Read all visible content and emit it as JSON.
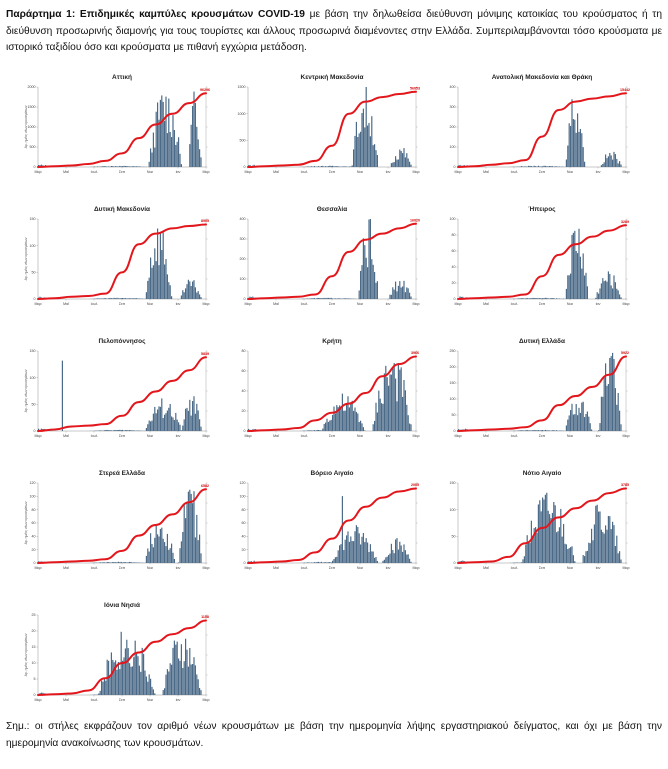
{
  "header": {
    "lead": "Παράρτημα 1: Επιδημικές καμπύλες κρουσμάτων COVID-19",
    "text": " με βάση την δηλωθείσα διεύθυνση μόνιμης κατοικίας του κρούσματος ή τη διεύθυνση προσωρινής διαμονής για τους τουρίστες και άλλους προσωρινά διαμένοντες στην Ελλάδα. Συμπεριλαμβάνονται τόσο κρούσματα με ιστορικό ταξιδίου όσο και κρούσματα με πιθανή εγχώρια μετάδοση."
  },
  "note": "Σημ.: οι στήλες εκφράζουν τον αριθμό νέων κρουσμάτων με βάση την ημερομηνία λήψης εργαστηριακού δείγματος, και όχι με βάση την ημερομηνία ανακοίνωσης των κρουσμάτων.",
  "colors": {
    "bars": "#4a6a88",
    "cumulative": "#e3161b",
    "axis": "#777777"
  },
  "chart_data": [
    {
      "type": "bar",
      "title": "Αττική",
      "months": [
        "Μαρ",
        "Μαϊ",
        "Ιουλ",
        "Σεπ",
        "Νοε",
        "Ιαν",
        "Μαρ"
      ],
      "ylabel": "Αρ. ημ/ος νέων κρουσμάτων",
      "ylim": [
        0,
        2000
      ],
      "yticks": [
        0,
        500,
        1000,
        1500,
        2000
      ],
      "cumulative_label": "96296",
      "cum_ylim": [
        0,
        100000
      ],
      "profile": {
        "wave1": [
          0.0,
          0.02
        ],
        "wave2": [
          0.66,
          0.86
        ],
        "wave3": [
          0.9,
          0.98
        ],
        "w2": 1.0,
        "w3": 0.95
      },
      "cumulative": [
        0.0,
        0.01,
        0.02,
        0.04,
        0.08,
        0.18,
        0.38,
        0.56,
        0.7,
        0.84,
        0.97
      ]
    },
    {
      "type": "bar",
      "title": "Κεντρική Μακεδονία",
      "months": [
        "Μαρ",
        "Μαϊ",
        "Ιουλ",
        "Σεπ",
        "Νοε",
        "Ιαν",
        "Μαρ"
      ],
      "ylabel": "",
      "ylim": [
        0,
        1500
      ],
      "yticks": [
        0,
        500,
        1000,
        1500
      ],
      "cumulative_label": "56053",
      "cum_ylim": [
        0,
        60000
      ],
      "profile": {
        "wave1": [
          0.0,
          0.02
        ],
        "wave2": [
          0.62,
          0.78
        ],
        "wave3": [
          0.85,
          0.98
        ],
        "w2": 1.0,
        "w3": 0.25
      },
      "cumulative": [
        0.0,
        0.01,
        0.02,
        0.03,
        0.08,
        0.28,
        0.7,
        0.86,
        0.92,
        0.96,
        0.99
      ]
    },
    {
      "type": "bar",
      "title": "Ανατολική Μακεδονία και Θράκη",
      "months": [
        "Μαρ",
        "Μαϊ",
        "Ιουλ",
        "Σεπ",
        "Νοε",
        "Ιαν",
        "Μαρ"
      ],
      "ylabel": "",
      "ylim": [
        0,
        400
      ],
      "yticks": [
        0,
        100,
        200,
        300,
        400
      ],
      "cumulative_label": "15442",
      "cum_ylim": [
        0,
        16000
      ],
      "profile": {
        "wave1": [
          0.0,
          0.02
        ],
        "wave2": [
          0.64,
          0.76
        ],
        "wave3": [
          0.85,
          0.98
        ],
        "w2": 1.0,
        "w3": 0.2
      },
      "cumulative": [
        0.0,
        0.01,
        0.03,
        0.05,
        0.09,
        0.4,
        0.75,
        0.86,
        0.9,
        0.93,
        0.97
      ]
    },
    {
      "type": "bar",
      "title": "Δυτική Μακεδονία",
      "months": [
        "Μαρ",
        "Μαϊ",
        "Ιουλ",
        "Σεπ",
        "Νοε",
        "Ιαν",
        "Μαρ"
      ],
      "ylabel": "Αρ. ημ/ος νέων κρουσμάτων",
      "ylim": [
        0,
        150
      ],
      "yticks": [
        0,
        50,
        100,
        150
      ],
      "cumulative_label": "8905",
      "cum_ylim": [
        0,
        9000
      ],
      "profile": {
        "wave1": [
          0.0,
          0.02
        ],
        "wave2": [
          0.64,
          0.8
        ],
        "wave3": [
          0.85,
          0.98
        ],
        "w2": 1.0,
        "w3": 0.25
      },
      "cumulative": [
        0.0,
        0.01,
        0.03,
        0.04,
        0.07,
        0.35,
        0.72,
        0.86,
        0.93,
        0.96,
        0.98
      ]
    },
    {
      "type": "bar",
      "title": "Θεσσαλία",
      "months": [
        "Μαρ",
        "Μαϊ",
        "Ιουλ",
        "Σεπ",
        "Νοε",
        "Ιαν",
        "Μαρ"
      ],
      "ylabel": "",
      "ylim": [
        0,
        400
      ],
      "yticks": [
        0,
        100,
        200,
        300,
        400
      ],
      "cumulative_label": "16020",
      "cum_ylim": [
        0,
        16000
      ],
      "profile": {
        "wave1": [
          0.0,
          0.02
        ],
        "wave2": [
          0.66,
          0.78
        ],
        "wave3": [
          0.84,
          0.98
        ],
        "w2": 1.0,
        "w3": 0.25
      },
      "cumulative": [
        0.0,
        0.01,
        0.02,
        0.03,
        0.06,
        0.3,
        0.62,
        0.78,
        0.86,
        0.93,
        0.99
      ]
    },
    {
      "type": "bar",
      "title": "Ήπειρος",
      "months": [
        "Μαρ",
        "Μαϊ",
        "Ιουλ",
        "Σεπ",
        "Νοε",
        "Ιαν",
        "Μαρ"
      ],
      "ylabel": "",
      "ylim": [
        0,
        100
      ],
      "yticks": [
        0,
        20,
        40,
        60,
        80,
        100
      ],
      "cumulative_label": "3289",
      "cum_ylim": [
        0,
        3500
      ],
      "profile": {
        "wave1": [
          0.0,
          0.02
        ],
        "wave2": [
          0.64,
          0.78
        ],
        "wave3": [
          0.82,
          0.98
        ],
        "w2": 1.0,
        "w3": 0.35
      },
      "cumulative": [
        0.0,
        0.01,
        0.02,
        0.03,
        0.06,
        0.3,
        0.58,
        0.72,
        0.82,
        0.9,
        0.97
      ]
    },
    {
      "type": "bar",
      "title": "Πελοπόννησος",
      "months": [
        "Μαρ",
        "Μαϊ",
        "Ιουλ",
        "Σεπ",
        "Νοε",
        "Ιαν",
        "Μαρ"
      ],
      "ylabel": "Αρ. ημ/ος νέων κρουσμάτων",
      "ylim": [
        0,
        150
      ],
      "yticks": [
        0,
        50,
        100,
        150
      ],
      "cumulative_label": "5839",
      "cum_ylim": [
        0,
        6000
      ],
      "profile": {
        "wave1": [
          0.0,
          0.02
        ],
        "wave2": [
          0.64,
          0.86
        ],
        "wave3": [
          0.86,
          0.98
        ],
        "w2": 0.4,
        "w3": 0.45,
        "spike": [
          0.14,
          1.0
        ]
      },
      "cumulative": [
        0.0,
        0.02,
        0.06,
        0.07,
        0.09,
        0.2,
        0.38,
        0.52,
        0.66,
        0.8,
        0.97
      ]
    },
    {
      "type": "bar",
      "title": "Κρήτη",
      "months": [
        "Μαρ",
        "Μαϊ",
        "Ιουλ",
        "Σεπ",
        "Νοε",
        "Ιαν",
        "Μαρ"
      ],
      "ylabel": "",
      "ylim": [
        0,
        80
      ],
      "yticks": [
        0,
        20,
        40,
        60,
        80
      ],
      "cumulative_label": "3966",
      "cum_ylim": [
        0,
        4000
      ],
      "profile": {
        "wave1": [
          0.0,
          0.02
        ],
        "wave2": [
          0.44,
          0.7
        ],
        "wave3": [
          0.74,
          0.98
        ],
        "w2": 0.45,
        "w3": 1.0
      },
      "cumulative": [
        0.0,
        0.01,
        0.02,
        0.04,
        0.14,
        0.24,
        0.36,
        0.5,
        0.72,
        0.88,
        0.98
      ]
    },
    {
      "type": "bar",
      "title": "Δυτική Ελλάδα",
      "months": [
        "Μαρ",
        "Μαϊ",
        "Ιουλ",
        "Σεπ",
        "Νοε",
        "Ιαν",
        "Μαρ"
      ],
      "ylabel": "",
      "ylim": [
        0,
        250
      ],
      "yticks": [
        0,
        50,
        100,
        150,
        200,
        250
      ],
      "cumulative_label": "5922",
      "cum_ylim": [
        0,
        6000
      ],
      "profile": {
        "wave1": [
          0.0,
          0.03
        ],
        "wave2": [
          0.64,
          0.8
        ],
        "wave3": [
          0.84,
          0.98
        ],
        "w2": 0.45,
        "w3": 1.0
      },
      "cumulative": [
        0.0,
        0.01,
        0.02,
        0.03,
        0.05,
        0.14,
        0.34,
        0.46,
        0.58,
        0.74,
        0.98
      ]
    },
    {
      "type": "bar",
      "title": "Στερεά Ελλάδα",
      "months": [
        "Μαρ",
        "Μαϊ",
        "Ιουλ",
        "Σεπ",
        "Νοε",
        "Ιαν",
        "Μαρ"
      ],
      "ylabel": "Αρ. ημ/ος νέων κρουσμάτων",
      "ylim": [
        0,
        120
      ],
      "yticks": [
        0,
        20,
        40,
        60,
        80,
        100,
        120
      ],
      "cumulative_label": "6582",
      "cum_ylim": [
        0,
        7000
      ],
      "profile": {
        "wave1": [
          0.0,
          0.03
        ],
        "wave2": [
          0.64,
          0.82
        ],
        "wave3": [
          0.84,
          0.98
        ],
        "w2": 0.6,
        "w3": 1.0
      },
      "cumulative": [
        0.0,
        0.01,
        0.02,
        0.03,
        0.05,
        0.16,
        0.36,
        0.5,
        0.64,
        0.8,
        0.97
      ]
    },
    {
      "type": "bar",
      "title": "Βόρειο Αιγαίο",
      "months": [
        "Μαρ",
        "Μαϊ",
        "Ιουλ",
        "Σεπ",
        "Νοε",
        "Ιαν",
        "Μαρ"
      ],
      "ylabel": "",
      "ylim": [
        0,
        120
      ],
      "yticks": [
        0,
        20,
        40,
        60,
        80,
        100,
        120
      ],
      "cumulative_label": "2005",
      "cum_ylim": [
        0,
        2200
      ],
      "profile": {
        "wave1": [
          0.0,
          0.02
        ],
        "wave2": [
          0.5,
          0.78
        ],
        "wave3": [
          0.8,
          0.98
        ],
        "w2": 0.45,
        "w3": 0.3,
        "spike": [
          0.56,
          0.95
        ]
      },
      "cumulative": [
        0.0,
        0.01,
        0.02,
        0.04,
        0.14,
        0.32,
        0.56,
        0.74,
        0.86,
        0.94,
        0.98
      ]
    },
    {
      "type": "bar",
      "title": "Νότιο Αιγαίο",
      "months": [
        "Μαρ",
        "Μαϊ",
        "Ιουλ",
        "Σεπ",
        "Νοε",
        "Ιαν",
        "Μαρ"
      ],
      "ylabel": "",
      "ylim": [
        0,
        150
      ],
      "yticks": [
        0,
        50,
        100,
        150
      ],
      "cumulative_label": "3785",
      "cum_ylim": [
        0,
        4000
      ],
      "profile": {
        "wave1": [
          0.0,
          0.02
        ],
        "wave2": [
          0.38,
          0.7
        ],
        "wave3": [
          0.74,
          0.98
        ],
        "w2": 0.9,
        "w3": 0.75
      },
      "cumulative": [
        0.0,
        0.01,
        0.02,
        0.08,
        0.26,
        0.46,
        0.6,
        0.72,
        0.82,
        0.92,
        0.98
      ]
    },
    {
      "type": "bar",
      "title": "Ιόνια Νησιά",
      "months": [
        "Μαρ",
        "Μαϊ",
        "Ιουλ",
        "Σεπ",
        "Νοε",
        "Ιαν",
        "Μαρ"
      ],
      "ylabel": "Αρ. ημ/ος νέων κρουσμάτων",
      "ylim": [
        0,
        25
      ],
      "yticks": [
        0,
        5,
        10,
        15,
        20,
        25
      ],
      "cumulative_label": "1158",
      "cum_ylim": [
        0,
        1200
      ],
      "profile": {
        "wave1": [
          0.0,
          0.02
        ],
        "wave2": [
          0.36,
          0.7
        ],
        "wave3": [
          0.74,
          0.98
        ],
        "w2": 0.8,
        "w3": 0.75
      },
      "cumulative": [
        0.0,
        0.01,
        0.02,
        0.06,
        0.22,
        0.42,
        0.56,
        0.7,
        0.8,
        0.88,
        0.98
      ]
    }
  ]
}
